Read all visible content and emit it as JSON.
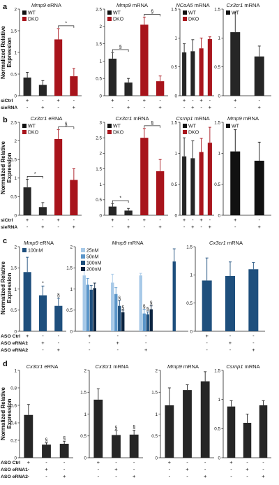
{
  "figure": {
    "ylabel": "Normalized Relative Expression"
  },
  "chart_data": [
    {
      "id": "a1",
      "panel_letter": "a",
      "type": "bar",
      "title_gene": "Mmp9",
      "title_suffix": " eRNA",
      "ylim": [
        0,
        2
      ],
      "yticks": [
        "0",
        "0.5",
        "1",
        "1.5",
        "2"
      ],
      "legend": [
        {
          "name": "WT",
          "color": "#111111"
        },
        {
          "name": "DKO",
          "color": "#a8141c"
        }
      ],
      "values": [
        0.42,
        0.25,
        1.3,
        0.45
      ],
      "errors": [
        0.12,
        0.1,
        0.25,
        0.18
      ],
      "colors": [
        "#262626",
        "#262626",
        "#a8141c",
        "#a8141c"
      ],
      "annotations": [
        {
          "bars": [
            2,
            3
          ],
          "text": "*"
        }
      ],
      "rows": [
        {
          "label": "siCtrl",
          "signs": [
            "+",
            "-",
            "+",
            "-"
          ]
        },
        {
          "label": "sieRNA",
          "signs": [
            "-",
            "+",
            "-",
            "+"
          ]
        }
      ]
    },
    {
      "id": "a2",
      "panel_letter": "",
      "type": "bar",
      "title_gene": "Mmp9",
      "title_suffix": " mRNA",
      "ylim": [
        0,
        2.5
      ],
      "yticks": [
        "0",
        "0.5",
        "1",
        "1.5",
        "2",
        "2.5"
      ],
      "legend": [
        {
          "name": "WT",
          "color": "#111111"
        },
        {
          "name": "DKO",
          "color": "#a8141c"
        }
      ],
      "values": [
        1.07,
        0.38,
        2.05,
        0.42
      ],
      "errors": [
        0.18,
        0.12,
        0.22,
        0.15
      ],
      "colors": [
        "#262626",
        "#262626",
        "#a8141c",
        "#a8141c"
      ],
      "annotations": [
        {
          "bars": [
            0,
            1
          ],
          "text": "§"
        },
        {
          "bars": [
            2,
            3
          ],
          "text": "§"
        }
      ],
      "rows": [
        {
          "label": "",
          "signs": [
            "+",
            "-",
            "+",
            "-"
          ]
        },
        {
          "label": "",
          "signs": [
            "-",
            "+",
            "-",
            "+"
          ]
        }
      ]
    },
    {
      "id": "a3",
      "panel_letter": "",
      "type": "bar",
      "title_gene": "NCoA5",
      "title_suffix": " mRNA",
      "ylim": [
        0,
        1.5
      ],
      "yticks": [
        "0",
        "0.5",
        "1",
        "1.5"
      ],
      "legend": [
        {
          "name": "WT",
          "color": "#111111"
        },
        {
          "name": "DKO",
          "color": "#a8141c"
        }
      ],
      "values": [
        0.75,
        0.77,
        0.82,
        0.98
      ],
      "errors": [
        0.15,
        0.2,
        0.18,
        0.04
      ],
      "colors": [
        "#262626",
        "#262626",
        "#a8141c",
        "#a8141c"
      ],
      "annotations": [],
      "rows": [
        {
          "label": "",
          "signs": [
            "+",
            "-",
            "+",
            "-"
          ]
        },
        {
          "label": "",
          "signs": [
            "-",
            "+",
            "-",
            "+"
          ]
        }
      ]
    },
    {
      "id": "a4",
      "panel_letter": "",
      "type": "bar",
      "title_gene": "Cx3cr1",
      "title_suffix": " mRNA",
      "ylim": [
        0,
        1.5
      ],
      "yticks": [
        "0",
        "0.5",
        "1",
        "1.5"
      ],
      "legend": [
        {
          "name": "WT",
          "color": "#111111"
        }
      ],
      "values": [
        1.1,
        0.68
      ],
      "errors": [
        0.35,
        0.18
      ],
      "colors": [
        "#262626",
        "#262626"
      ],
      "annotations": [],
      "rows": [
        {
          "label": "",
          "signs": [
            "+",
            "-"
          ]
        },
        {
          "label": "",
          "signs": [
            "-",
            "+"
          ]
        }
      ]
    },
    {
      "id": "b1",
      "panel_letter": "b",
      "type": "bar",
      "title_gene": "Cx3cr1",
      "title_suffix": " eRNA",
      "ylim": [
        0,
        2.5
      ],
      "yticks": [
        "0",
        "0.5",
        "1",
        "1.5",
        "2",
        "2.5"
      ],
      "legend": [
        {
          "name": "WT",
          "color": "#111111"
        },
        {
          "name": "DKO",
          "color": "#a8141c"
        }
      ],
      "values": [
        0.75,
        0.22,
        2.05,
        0.95
      ],
      "errors": [
        0.22,
        0.12,
        0.25,
        0.3
      ],
      "colors": [
        "#262626",
        "#262626",
        "#a8141c",
        "#a8141c"
      ],
      "annotations": [
        {
          "bars": [
            0,
            1
          ],
          "text": "*"
        },
        {
          "bars": [
            2,
            3
          ],
          "text": "§"
        }
      ],
      "rows": [
        {
          "label": "siCtrl",
          "signs": [
            "+",
            "-",
            "+",
            "-"
          ]
        },
        {
          "label": "sieRNA",
          "signs": [
            "-",
            "+",
            "-",
            "+"
          ]
        }
      ]
    },
    {
      "id": "b2",
      "panel_letter": "",
      "type": "bar",
      "title_gene": "Cx3cr1",
      "title_suffix": " mRNA",
      "ylim": [
        0,
        3
      ],
      "yticks": [
        "0",
        "0.5",
        "1",
        "1.5",
        "2",
        "2.5",
        "3"
      ],
      "legend": [
        {
          "name": "WT",
          "color": "#111111"
        },
        {
          "name": "DKO",
          "color": "#a8141c"
        }
      ],
      "values": [
        0.28,
        0.15,
        2.5,
        1.42
      ],
      "errors": [
        0.1,
        0.07,
        0.3,
        0.38
      ],
      "colors": [
        "#262626",
        "#262626",
        "#a8141c",
        "#a8141c"
      ],
      "annotations": [
        {
          "bars": [
            0,
            1
          ],
          "text": "*"
        },
        {
          "bars": [
            2,
            3
          ],
          "text": "§"
        }
      ],
      "rows": [
        {
          "label": "",
          "signs": [
            "+",
            "-",
            "+",
            "-"
          ]
        },
        {
          "label": "",
          "signs": [
            "-",
            "+",
            "-",
            "+"
          ]
        }
      ]
    },
    {
      "id": "b3",
      "panel_letter": "",
      "type": "bar",
      "title_gene": "Csrnp1",
      "title_suffix": " mRNA",
      "ylim": [
        0,
        1.5
      ],
      "yticks": [
        "0",
        "0.5",
        "1",
        "1.5"
      ],
      "legend": [
        {
          "name": "WT",
          "color": "#111111"
        },
        {
          "name": "DKO",
          "color": "#a8141c"
        }
      ],
      "values": [
        0.95,
        0.92,
        1.02,
        1.17
      ],
      "errors": [
        0.3,
        0.28,
        0.22,
        0.25
      ],
      "colors": [
        "#262626",
        "#262626",
        "#a8141c",
        "#a8141c"
      ],
      "annotations": [],
      "rows": [
        {
          "label": "",
          "signs": [
            "+",
            "-",
            "+",
            "-"
          ]
        },
        {
          "label": "",
          "signs": [
            "-",
            "+",
            "-",
            "+"
          ]
        }
      ]
    },
    {
      "id": "b4",
      "panel_letter": "",
      "type": "bar",
      "title_gene": "Mmp9",
      "title_suffix": " mRNA",
      "ylim": [
        0,
        1.5
      ],
      "yticks": [
        "0",
        "0.5",
        "1",
        "1.5"
      ],
      "legend": [
        {
          "name": "WT",
          "color": "#111111"
        }
      ],
      "values": [
        1.03,
        0.88
      ],
      "errors": [
        0.35,
        0.3
      ],
      "colors": [
        "#111111",
        "#111111"
      ],
      "annotations": [],
      "rows": [
        {
          "label": "",
          "signs": [
            "+",
            "-"
          ]
        },
        {
          "label": "",
          "signs": [
            "-",
            "+"
          ]
        }
      ]
    },
    {
      "id": "c1",
      "panel_letter": "c",
      "type": "bar",
      "title_gene": "Mmp9",
      "title_suffix": " eRNA",
      "ylim": [
        0,
        2
      ],
      "yticks": [
        "0",
        "0.5",
        "1",
        "1.5",
        "2"
      ],
      "legend": [
        {
          "name": "100nM",
          "color": "#1e4f7d"
        }
      ],
      "values": [
        1.4,
        0.85,
        0.6
      ],
      "errors": [
        0.35,
        0.22,
        0.18
      ],
      "colors": [
        "#1e4f7d",
        "#1e4f7d",
        "#1e4f7d"
      ],
      "marks": [
        {
          "bar": 1,
          "text": "*"
        },
        {
          "bar": 2,
          "text": "§"
        }
      ],
      "annotations": [],
      "rows": [
        {
          "label": "ASO Ctrl",
          "signs": [
            "+",
            "-",
            "-"
          ]
        },
        {
          "label": "ASO eRNA1",
          "signs": [
            "-",
            "+",
            "-"
          ]
        },
        {
          "label": "ASO eRNA2",
          "signs": [
            "-",
            "-",
            "+"
          ]
        }
      ]
    },
    {
      "id": "c2",
      "panel_letter": "",
      "type": "bar",
      "title_gene": "Mmp9",
      "title_suffix": " mRNA",
      "ylim": [
        0,
        2
      ],
      "yticks": [
        "0",
        "0.5",
        "1",
        "1.5",
        "2"
      ],
      "legend": [
        {
          "name": "25nM",
          "color": "#a7c9e8"
        },
        {
          "name": "50nM",
          "color": "#5a95c9"
        },
        {
          "name": "100nM",
          "color": "#1e4f7d"
        },
        {
          "name": "200nM",
          "color": "#0c2440"
        }
      ],
      "grouped": true,
      "groups": [
        {
          "values": [
            1.32,
            1.1,
            0.98,
            1.02
          ],
          "errors": [
            0.12,
            0.15,
            0.1,
            0.12
          ]
        },
        {
          "values": [
            1.15,
            0.88,
            0.6,
            0.45
          ],
          "errors": [
            0.2,
            0.15,
            0.12,
            0.05
          ]
        },
        {
          "values": [
            1.32,
            0.42,
            0.4,
            0.52
          ],
          "errors": [
            0.05,
            0.1,
            0.06,
            0.08
          ]
        },
        {
          "values": [
            1.65
          ],
          "errors": [
            0.3
          ],
          "colors": [
            "#1e4f7d"
          ]
        }
      ],
      "marks": [
        {
          "group": 1,
          "bar": 2,
          "text": "§"
        },
        {
          "group": 1,
          "bar": 3,
          "text": "§"
        },
        {
          "group": 2,
          "bar": 1,
          "text": "§"
        },
        {
          "group": 2,
          "bar": 2,
          "text": "§"
        },
        {
          "group": 2,
          "bar": 3,
          "text": "§"
        }
      ],
      "annotations": [],
      "rows": [
        {
          "label": "",
          "signs": [
            "+",
            "-",
            "-",
            ""
          ]
        },
        {
          "label": "",
          "signs": [
            "-",
            "+",
            "-",
            ""
          ]
        },
        {
          "label": "",
          "signs": [
            "-",
            "-",
            "+",
            ""
          ]
        }
      ]
    },
    {
      "id": "c3",
      "panel_letter": "",
      "type": "bar",
      "title_gene": "Cx3cr1",
      "title_suffix": " mRNA",
      "ylim": [
        0,
        1.5
      ],
      "yticks": [
        "0",
        "0.5",
        "1",
        "1.5"
      ],
      "legend": [],
      "values": [
        0.9,
        0.98,
        1.1
      ],
      "errors": [
        0.4,
        0.25,
        0.12
      ],
      "colors": [
        "#1e4f7d",
        "#1e4f7d",
        "#1e4f7d"
      ],
      "annotations": [],
      "rows": [
        {
          "label": "",
          "signs": [
            "+",
            "-",
            "-"
          ]
        },
        {
          "label": "",
          "signs": [
            "-",
            "+",
            "-"
          ]
        },
        {
          "label": "",
          "signs": [
            "-",
            "-",
            "+"
          ]
        }
      ]
    },
    {
      "id": "d1",
      "panel_letter": "d",
      "type": "bar",
      "title_gene": "Cx3cr1",
      "title_suffix": " eRNA",
      "ylim": [
        0,
        1
      ],
      "yticks": [
        "0",
        "0.2",
        "0.4",
        "0.6",
        "0.8",
        "1"
      ],
      "legend": [],
      "values": [
        0.49,
        0.15,
        0.16
      ],
      "errors": [
        0.12,
        0.02,
        0.03
      ],
      "colors": [
        "#262626",
        "#262626",
        "#262626"
      ],
      "marks": [
        {
          "bar": 1,
          "text": "§"
        },
        {
          "bar": 2,
          "text": "§"
        }
      ],
      "annotations": [],
      "rows": [
        {
          "label": "ASO Ctrl",
          "signs": [
            "+",
            "-",
            "-"
          ]
        },
        {
          "label": "ASO eRNA1",
          "signs": [
            "-",
            "+",
            "-"
          ]
        },
        {
          "label": "ASO eRNA2",
          "signs": [
            "-",
            "-",
            "+"
          ]
        }
      ]
    },
    {
      "id": "d2",
      "panel_letter": "",
      "type": "bar",
      "title_gene": "Cx3cr1",
      "title_suffix": " mRNA",
      "ylim": [
        0,
        2
      ],
      "yticks": [
        "0",
        "0.5",
        "1",
        "1.5",
        "2"
      ],
      "legend": [],
      "values": [
        1.33,
        0.52,
        0.53
      ],
      "errors": [
        0.25,
        0.1,
        0.1
      ],
      "colors": [
        "#262626",
        "#262626",
        "#262626"
      ],
      "marks": [
        {
          "bar": 1,
          "text": "§"
        },
        {
          "bar": 2,
          "text": "§"
        }
      ],
      "annotations": [],
      "rows": [
        {
          "label": "",
          "signs": [
            "+",
            "-",
            "-"
          ]
        },
        {
          "label": "",
          "signs": [
            "-",
            "+",
            "-"
          ]
        },
        {
          "label": "",
          "signs": [
            "-",
            "-",
            "+"
          ]
        }
      ]
    },
    {
      "id": "d3",
      "panel_letter": "",
      "type": "bar",
      "title_gene": "Mmp9",
      "title_suffix": " mRNA",
      "ylim": [
        0,
        2
      ],
      "yticks": [
        "0",
        "0.5",
        "1",
        "1.5",
        "2"
      ],
      "legend": [],
      "values": [
        1.2,
        1.55,
        1.75
      ],
      "errors": [
        0.4,
        0.12,
        0.22
      ],
      "colors": [
        "#262626",
        "#262626",
        "#262626"
      ],
      "annotations": [],
      "rows": [
        {
          "label": "",
          "signs": [
            "+",
            "-",
            "-"
          ]
        },
        {
          "label": "",
          "signs": [
            "-",
            "+",
            "-"
          ]
        },
        {
          "label": "",
          "signs": [
            "-",
            "-",
            "+"
          ]
        }
      ]
    },
    {
      "id": "d4",
      "panel_letter": "",
      "type": "bar",
      "title_gene": "Csrnp1",
      "title_suffix": " mRNA",
      "ylim": [
        0,
        1.5
      ],
      "yticks": [
        "0",
        "0.5",
        "1",
        "1.5"
      ],
      "legend": [],
      "values": [
        0.88,
        0.6,
        0.9
      ],
      "errors": [
        0.1,
        0.15,
        0.08
      ],
      "colors": [
        "#262626",
        "#262626",
        "#262626"
      ],
      "annotations": [],
      "rows": [
        {
          "label": "",
          "signs": [
            "+",
            "-",
            "-"
          ]
        },
        {
          "label": "",
          "signs": [
            "-",
            "+",
            "-"
          ]
        },
        {
          "label": "",
          "signs": [
            "-",
            "-",
            "+"
          ]
        }
      ]
    }
  ]
}
